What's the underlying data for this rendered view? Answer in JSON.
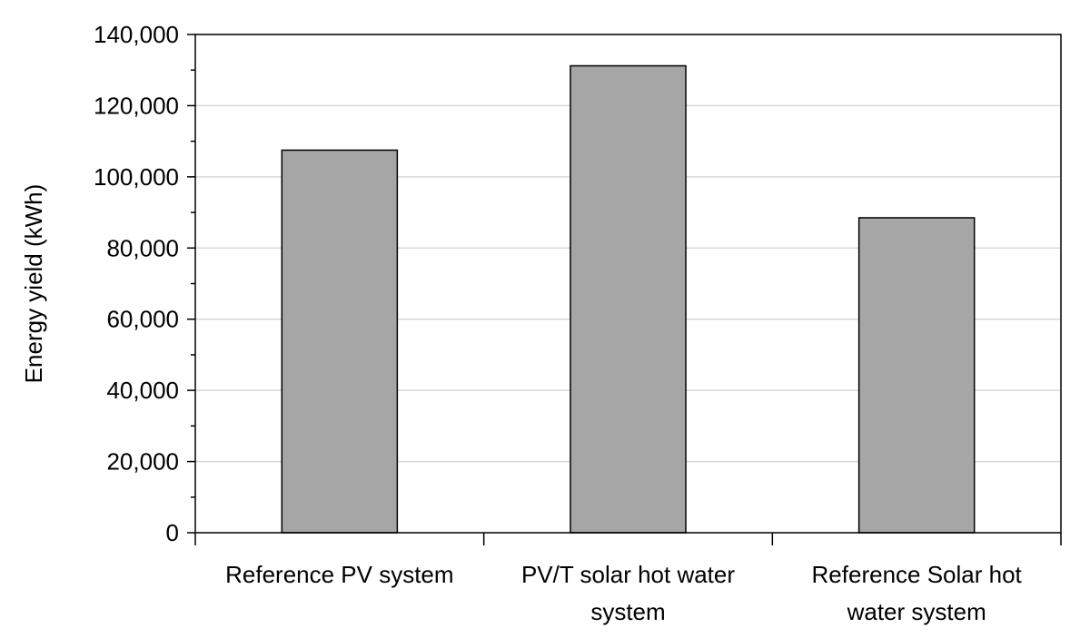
{
  "chart_data": {
    "type": "bar",
    "title": "",
    "xlabel": "",
    "ylabel": "Energy yield (kWh)",
    "ylim": [
      0,
      140000
    ],
    "y_ticks": [
      {
        "value": 0,
        "label": "0"
      },
      {
        "value": 20000,
        "label": "20,000"
      },
      {
        "value": 40000,
        "label": "40,000"
      },
      {
        "value": 60000,
        "label": "60,000"
      },
      {
        "value": 80000,
        "label": "80,000"
      },
      {
        "value": 100000,
        "label": "100,000"
      },
      {
        "value": 120000,
        "label": "120,000"
      },
      {
        "value": 140000,
        "label": "140,000"
      }
    ],
    "categories": [
      [
        "Reference PV system"
      ],
      [
        "PV/T solar hot water",
        "system"
      ],
      [
        "Reference Solar hot",
        "water system"
      ]
    ],
    "values": [
      107500,
      131200,
      88500
    ],
    "grid": true,
    "legend": "none",
    "colors": {
      "bar_fill": "#a6a6a6",
      "bar_stroke": "#000000",
      "grid": "#d9d9d9",
      "axis": "#000000",
      "plot_border": "#000000"
    }
  }
}
